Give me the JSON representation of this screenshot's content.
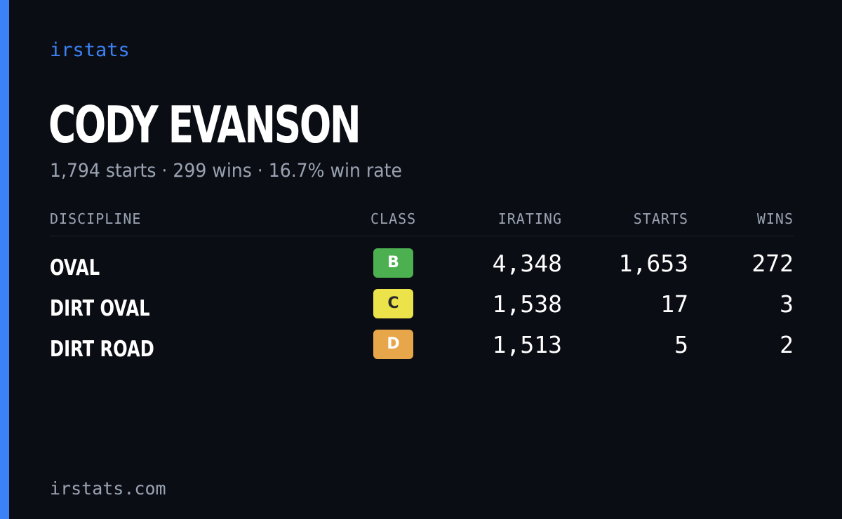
{
  "brand": "irstats",
  "player": {
    "name": "CODY EVANSON",
    "summary": "1,794 starts · 299 wins · 16.7% win rate"
  },
  "table": {
    "headers": {
      "discipline": "DISCIPLINE",
      "class": "CLASS",
      "irating": "IRATING",
      "starts": "STARTS",
      "wins": "WINS"
    },
    "rows": [
      {
        "discipline": "OVAL",
        "class": "B",
        "class_color": "#4caf50",
        "class_text_color": "#ffffff",
        "irating": "4,348",
        "starts": "1,653",
        "wins": "272"
      },
      {
        "discipline": "DIRT OVAL",
        "class": "C",
        "class_color": "#ece24a",
        "class_text_color": "#2a2a2a",
        "irating": "1,538",
        "starts": "17",
        "wins": "3"
      },
      {
        "discipline": "DIRT ROAD",
        "class": "D",
        "class_color": "#e8a64a",
        "class_text_color": "#ffffff",
        "irating": "1,513",
        "starts": "5",
        "wins": "2"
      }
    ]
  },
  "footer": "irstats.com",
  "colors": {
    "background": "#0b0d14",
    "accent": "#3b82f6",
    "muted_text": "#9aa3b2",
    "primary_text": "#ffffff"
  }
}
